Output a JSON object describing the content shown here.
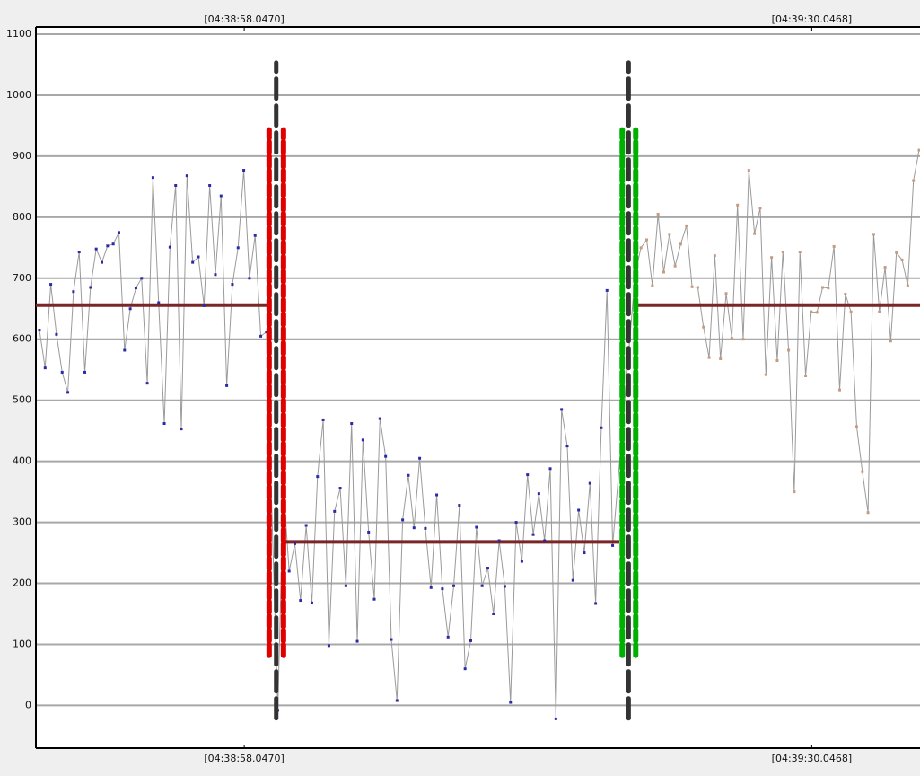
{
  "chart_data": {
    "type": "line",
    "xlim": [
      16726.3,
      16776.15
    ],
    "ylim": [
      -70,
      1100
    ],
    "xticks": [
      {
        "value": 16738.047,
        "label": "[04:38:58.0470]"
      },
      {
        "value": 16770.0468,
        "label": "[04:39:30.0468]"
      }
    ],
    "yticks": [
      0,
      100,
      200,
      300,
      400,
      500,
      600,
      700,
      800,
      900,
      1000,
      1100
    ],
    "grid": true,
    "line_color": "#9a9a9a",
    "series": [
      {
        "color": "#2a2aa8",
        "x": [
          16726.5,
          16726.82,
          16727.14,
          16727.46,
          16727.78,
          16728.1,
          16728.42,
          16728.74,
          16729.06,
          16729.38,
          16729.7,
          16730.02,
          16730.34,
          16730.66,
          16730.98,
          16731.3,
          16731.62,
          16731.94,
          16732.26,
          16732.58,
          16732.9,
          16733.22,
          16733.54,
          16733.86,
          16734.18,
          16734.5,
          16734.82,
          16735.14,
          16735.46,
          16735.78,
          16736.1,
          16736.42,
          16736.74,
          16737.06,
          16737.38,
          16737.7,
          16738.02,
          16738.34,
          16738.66,
          16738.98,
          16739.3,
          16739.94,
          16740.26,
          16740.58,
          16740.9,
          16741.22,
          16741.54,
          16741.86,
          16742.18,
          16742.5,
          16742.82,
          16743.14,
          16743.46,
          16743.78,
          16744.1,
          16744.42,
          16744.74,
          16745.06,
          16745.38,
          16745.7,
          16746.02,
          16746.34,
          16746.66,
          16746.98,
          16747.3,
          16747.62,
          16747.94,
          16748.26,
          16748.58,
          16748.9,
          16749.22,
          16749.54,
          16749.86,
          16750.18,
          16750.5,
          16750.82,
          16751.14,
          16751.46,
          16751.78,
          16752.1,
          16752.42,
          16752.74,
          16753.06,
          16753.38,
          16753.7,
          16754.02,
          16754.34,
          16754.66,
          16754.98,
          16755.3,
          16755.62,
          16755.94,
          16756.26,
          16756.58,
          16756.9,
          16757.22,
          16757.54,
          16757.86,
          16758.18,
          16758.5,
          16758.82
        ],
        "values": [
          615,
          553,
          690,
          608,
          546,
          513,
          678,
          743,
          546,
          685,
          748,
          726,
          753,
          756,
          775,
          582,
          650,
          684,
          700,
          528,
          865,
          660,
          462,
          751,
          852,
          453,
          868,
          726,
          735,
          655,
          852,
          706,
          835,
          524,
          690,
          750,
          877,
          700,
          770,
          605,
          612,
          -8,
          358,
          220,
          265,
          172,
          295,
          168,
          375,
          468,
          98,
          318,
          356,
          196,
          462,
          105,
          435,
          284,
          174,
          470,
          408,
          108,
          8,
          304,
          377,
          291,
          405,
          290,
          193,
          345,
          191,
          112,
          196,
          328,
          60,
          106,
          292,
          196,
          225,
          150,
          270,
          195,
          5,
          300,
          236,
          378,
          280,
          347,
          270,
          388,
          -22,
          485,
          425,
          205,
          320,
          250,
          364,
          167,
          455,
          680,
          262
        ]
      },
      {
        "color": "#c89a80",
        "x": [
          16760.1,
          16760.42,
          16760.74,
          16761.06,
          16761.38,
          16761.7,
          16762.02,
          16762.34,
          16762.66,
          16762.98,
          16763.3,
          16763.62,
          16763.94,
          16764.26,
          16764.58,
          16764.9,
          16765.22,
          16765.54,
          16765.86,
          16766.18,
          16766.5,
          16766.82,
          16767.14,
          16767.46,
          16767.78,
          16768.1,
          16768.42,
          16768.74,
          16769.06,
          16769.38,
          16769.7,
          16770.02,
          16770.34,
          16770.66,
          16770.98,
          16771.3,
          16771.62,
          16771.94,
          16772.26,
          16772.58,
          16772.9,
          16773.22,
          16773.54,
          16773.86,
          16774.18,
          16774.5,
          16774.82,
          16775.14,
          16775.46,
          16775.78,
          16776.1
        ],
        "values": [
          710,
          750,
          763,
          688,
          805,
          710,
          772,
          720,
          756,
          786,
          686,
          685,
          620,
          570,
          737,
          568,
          675,
          602,
          820,
          600,
          877,
          773,
          815,
          542,
          734,
          565,
          743,
          582,
          350,
          743,
          540,
          645,
          644,
          685,
          684,
          752,
          517,
          674,
          645,
          457,
          383,
          316,
          772,
          645,
          718,
          597,
          742,
          730,
          688,
          860,
          910
        ]
      }
    ],
    "mean_lines": [
      {
        "x": [
          16726.3,
          16739.45
        ],
        "value": 656,
        "color": "#7a2626"
      },
      {
        "x": [
          16740.2,
          16759.2
        ],
        "value": 268,
        "color": "#7a2626"
      },
      {
        "x": [
          16760.2,
          16776.15
        ],
        "value": 656,
        "color": "#7a2626"
      }
    ],
    "markers": [
      {
        "x": 16739.45,
        "y": [
          82,
          943
        ],
        "color": "#e00000"
      },
      {
        "x": 16740.26,
        "y": [
          82,
          943
        ],
        "color": "#e00000"
      },
      {
        "x": 16759.36,
        "y": [
          82,
          943
        ],
        "color": "#00b000"
      },
      {
        "x": 16760.12,
        "y": [
          82,
          943
        ],
        "color": "#00b000"
      },
      {
        "x": 16739.85,
        "y": [
          -21,
          1053
        ],
        "color": "#333333"
      },
      {
        "x": 16759.72,
        "y": [
          -21,
          1053
        ],
        "color": "#333333"
      }
    ]
  }
}
